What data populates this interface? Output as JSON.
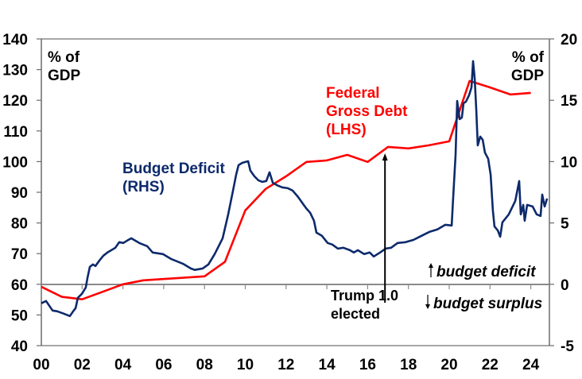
{
  "chart_data": {
    "type": "line",
    "title": "",
    "xlabel": "",
    "left_axis": {
      "label_lines": [
        "% of",
        "GDP"
      ],
      "range": [
        40,
        140
      ],
      "ticks": [
        "140",
        "130",
        "120",
        "110",
        "100",
        "90",
        "80",
        "70",
        "60",
        "50",
        "40"
      ]
    },
    "right_axis": {
      "label_lines": [
        "% of",
        "GDP"
      ],
      "range": [
        -5,
        20
      ],
      "ticks": [
        "20",
        "15",
        "10",
        "5",
        "0",
        "-5"
      ]
    },
    "x_axis": {
      "range": [
        0,
        24.9
      ],
      "ticks": [
        "00",
        "02",
        "04",
        "06",
        "08",
        "10",
        "12",
        "14",
        "16",
        "18",
        "20",
        "22",
        "24"
      ],
      "tick_values": [
        0,
        2,
        4,
        6,
        8,
        10,
        12,
        14,
        16,
        18,
        20,
        22,
        24
      ]
    },
    "grid": false,
    "series": [
      {
        "name": "Federal Gross Debt (LHS)",
        "label_lines": [
          "Federal",
          "Gross Debt",
          "(LHS)"
        ],
        "axis": "left",
        "color": "#ff0000",
        "x": [
          0,
          1,
          2,
          4,
          5,
          8,
          9,
          10,
          11,
          12,
          13,
          14,
          15,
          16,
          17,
          18,
          19,
          20,
          21,
          22,
          23,
          24
        ],
        "values": [
          59.2,
          55.9,
          55.1,
          60.0,
          61.3,
          62.6,
          67.3,
          84.1,
          91.1,
          95.2,
          99.9,
          100.4,
          102.2,
          99.9,
          104.8,
          104.3,
          105.3,
          106.6,
          126.3,
          124.2,
          121.9,
          122.4
        ]
      },
      {
        "name": "Budget Deficit (RHS)",
        "label_lines": [
          "Budget Deficit",
          "(RHS)"
        ],
        "axis": "right",
        "color": "#0d2a6b",
        "x": [
          0.0,
          0.23,
          0.39,
          0.55,
          0.78,
          1.09,
          1.4,
          1.56,
          1.68,
          1.79,
          1.99,
          2.18,
          2.26,
          2.38,
          2.53,
          2.65,
          2.85,
          3.04,
          3.24,
          3.43,
          3.63,
          3.82,
          4.02,
          4.21,
          4.41,
          4.6,
          4.8,
          4.99,
          5.19,
          5.46,
          5.96,
          6.35,
          6.94,
          7.33,
          7.52,
          7.91,
          8.19,
          8.5,
          8.89,
          9.16,
          9.4,
          9.55,
          9.67,
          9.86,
          10.14,
          10.25,
          10.45,
          10.64,
          10.84,
          11.03,
          11.19,
          11.35,
          11.54,
          11.81,
          12.09,
          12.32,
          12.59,
          12.98,
          13.18,
          13.37,
          13.49,
          13.76,
          14.04,
          14.27,
          14.54,
          14.81,
          15.13,
          15.32,
          15.52,
          15.83,
          16.1,
          16.3,
          16.61,
          16.88,
          17.15,
          17.47,
          17.86,
          18.25,
          18.64,
          19.02,
          19.42,
          19.81,
          20.12,
          20.19,
          20.31,
          20.39,
          20.51,
          20.62,
          20.7,
          20.82,
          20.97,
          21.09,
          21.17,
          21.25,
          21.33,
          21.4,
          21.52,
          21.64,
          21.75,
          21.91,
          22.03,
          22.14,
          22.22,
          22.38,
          22.5,
          22.61,
          22.92,
          23.24,
          23.43,
          23.51,
          23.63,
          23.7,
          23.82,
          24.09,
          24.29,
          24.48,
          24.56,
          24.68,
          24.8
        ],
        "values": [
          -1.55,
          -1.36,
          -1.75,
          -2.14,
          -2.2,
          -2.39,
          -2.59,
          -2.2,
          -1.94,
          -1.1,
          -0.78,
          -0.26,
          0.52,
          1.42,
          1.62,
          1.49,
          1.94,
          2.33,
          2.59,
          2.78,
          2.98,
          3.43,
          3.37,
          3.56,
          3.75,
          3.56,
          3.37,
          3.24,
          3.11,
          2.59,
          2.46,
          2.07,
          1.68,
          1.29,
          1.17,
          1.29,
          1.62,
          2.46,
          3.75,
          5.7,
          7.64,
          8.93,
          9.71,
          9.9,
          10.03,
          9.26,
          8.8,
          8.48,
          8.35,
          8.41,
          9.13,
          8.28,
          8.09,
          7.9,
          7.83,
          7.64,
          7.12,
          6.21,
          5.83,
          5.18,
          4.21,
          3.95,
          3.37,
          3.24,
          2.91,
          2.98,
          2.78,
          2.59,
          2.78,
          2.46,
          2.59,
          2.27,
          2.59,
          2.91,
          2.98,
          3.37,
          3.43,
          3.62,
          3.95,
          4.27,
          4.47,
          4.85,
          4.79,
          6.99,
          10.55,
          14.95,
          13.46,
          13.59,
          14.76,
          14.89,
          15.4,
          16.05,
          18.19,
          16.7,
          14.11,
          11.33,
          12.04,
          11.78,
          10.74,
          10.23,
          8.93,
          6.02,
          4.72,
          4.4,
          3.88,
          5.05,
          5.7,
          6.8,
          8.41,
          5.7,
          6.47,
          5.18,
          6.47,
          6.34,
          5.7,
          5.57,
          7.31,
          6.34,
          6.99
        ]
      }
    ],
    "annotations": {
      "event": {
        "label_lines": [
          "Trump 1.0",
          "elected"
        ],
        "x": 16.85
      },
      "deficit_note": "budget deficit",
      "surplus_note": "budget surplus"
    }
  }
}
